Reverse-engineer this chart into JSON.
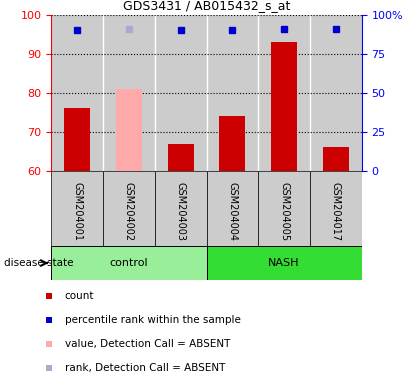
{
  "title": "GDS3431 / AB015432_s_at",
  "samples": [
    "GSM204001",
    "GSM204002",
    "GSM204003",
    "GSM204004",
    "GSM204005",
    "GSM204017"
  ],
  "groups": [
    "control",
    "control",
    "control",
    "NASH",
    "NASH",
    "NASH"
  ],
  "count_values": [
    76,
    null,
    67,
    74,
    93,
    66
  ],
  "count_absent_values": [
    null,
    81,
    null,
    null,
    null,
    null
  ],
  "percentile_values": [
    90,
    null,
    90,
    90,
    91,
    91
  ],
  "percentile_absent_values": [
    null,
    91,
    null,
    null,
    null,
    null
  ],
  "ylim_left": [
    60,
    100
  ],
  "ylim_right": [
    0,
    100
  ],
  "right_ticks": [
    0,
    25,
    50,
    75,
    100
  ],
  "right_tick_labels": [
    "0",
    "25",
    "50",
    "75",
    "100%"
  ],
  "left_ticks": [
    60,
    70,
    80,
    90,
    100
  ],
  "bar_width": 0.5,
  "count_color": "#cc0000",
  "count_absent_color": "#ffaaaa",
  "percentile_color": "#0000cc",
  "percentile_absent_color": "#aaaacc",
  "group_colors": {
    "control": "#99ee99",
    "NASH": "#33dd33"
  },
  "legend_items": [
    {
      "label": "count",
      "color": "#cc0000"
    },
    {
      "label": "percentile rank within the sample",
      "color": "#0000cc"
    },
    {
      "label": "value, Detection Call = ABSENT",
      "color": "#ffaaaa"
    },
    {
      "label": "rank, Detection Call = ABSENT",
      "color": "#aaaacc"
    }
  ],
  "disease_state_label": "disease state",
  "background_color": "#cccccc",
  "sample_label_fontsize": 7,
  "title_fontsize": 9,
  "axis_fontsize": 8,
  "legend_fontsize": 7.5
}
